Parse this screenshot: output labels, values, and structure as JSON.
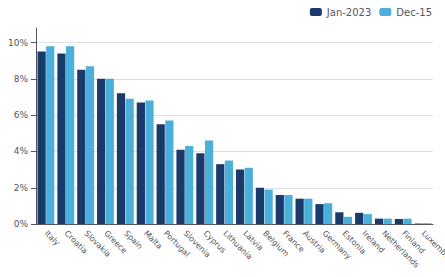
{
  "chart_data": {
    "type": "bar",
    "categories": [
      "Italy",
      "Croatia",
      "Slovakia",
      "Greece",
      "Spain",
      "Malta",
      "Portugal",
      "Slovenia",
      "Cyprus",
      "Lithuania",
      "Latvia",
      "Belgium",
      "France",
      "Austria",
      "Germany",
      "Estonia",
      "Ireland",
      "Netherlands",
      "Finland",
      "Luxembourg"
    ],
    "series": [
      {
        "name": "Jan-2023",
        "color": "#1a3a6b",
        "values": [
          9.5,
          9.4,
          8.5,
          8.0,
          7.2,
          6.7,
          5.5,
          4.1,
          3.9,
          3.3,
          3.0,
          2.0,
          1.6,
          1.4,
          1.1,
          0.65,
          0.62,
          0.3,
          0.28,
          0.03
        ]
      },
      {
        "name": "Dec-15",
        "color": "#4ab0d9",
        "values": [
          9.8,
          9.8,
          8.7,
          8.0,
          6.9,
          6.8,
          5.7,
          4.3,
          4.6,
          3.5,
          3.1,
          1.9,
          1.6,
          1.4,
          1.15,
          0.4,
          0.55,
          0.3,
          0.3,
          0.05
        ]
      }
    ],
    "ylim": [
      0,
      10.8
    ],
    "yticks": [
      {
        "value": 0,
        "label": "0%"
      },
      {
        "value": 2,
        "label": "2%"
      },
      {
        "value": 4,
        "label": "4%"
      },
      {
        "value": 6,
        "label": "6%"
      },
      {
        "value": 8,
        "label": "8%"
      },
      {
        "value": 10,
        "label": "10%"
      }
    ],
    "grid": true,
    "legend": "upper right"
  }
}
